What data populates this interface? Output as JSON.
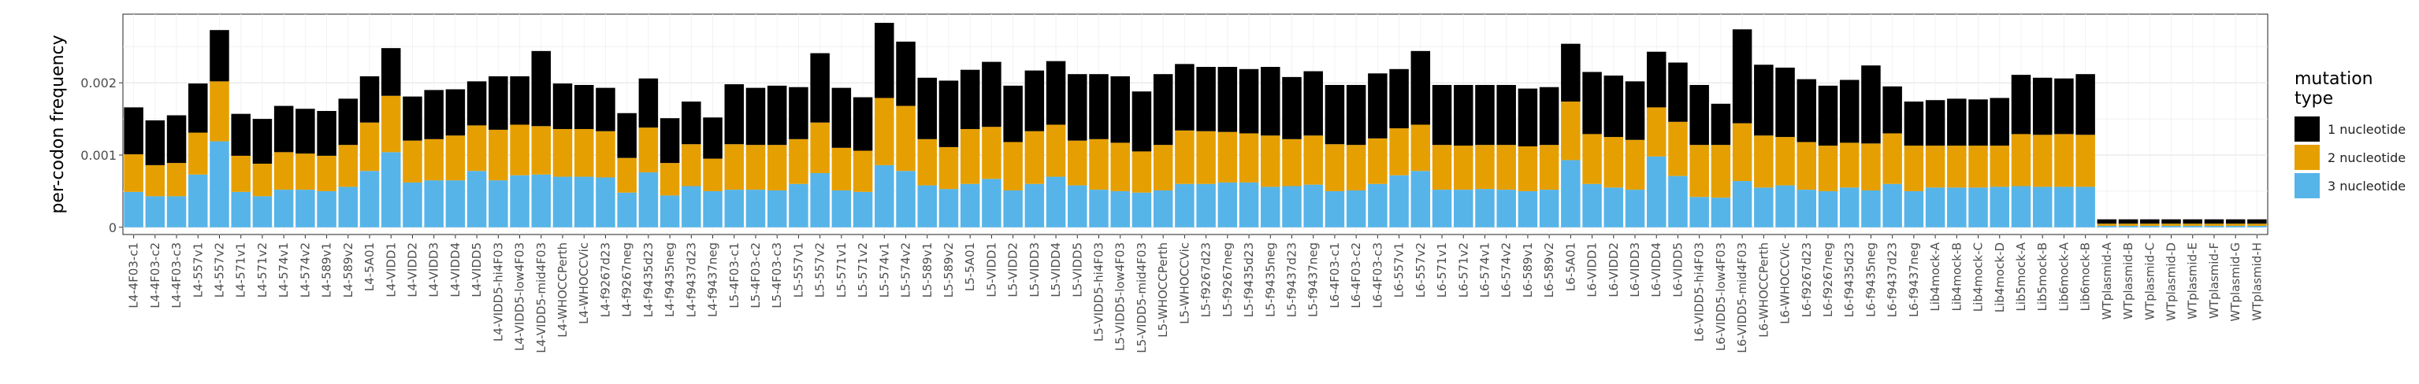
{
  "chart_data": {
    "type": "bar",
    "stacked": true,
    "ylabel": "per-codon frequency",
    "xlabel": "",
    "title": "",
    "ylim": [
      -0.0001,
      0.00295
    ],
    "yticks": [
      0,
      0.001,
      0.002
    ],
    "ytick_labels": [
      "0",
      "0.001",
      "0.002"
    ],
    "grid": true,
    "legend": {
      "title": "mutation type",
      "placement": "right"
    },
    "categories": [
      "L4-4F03-c1",
      "L4-4F03-c2",
      "L4-4F03-c3",
      "L4-557v1",
      "L4-557v2",
      "L4-571v1",
      "L4-571v2",
      "L4-574v1",
      "L4-574v2",
      "L4-589v1",
      "L4-589v2",
      "L4-5A01",
      "L4-VIDD1",
      "L4-VIDD2",
      "L4-VIDD3",
      "L4-VIDD4",
      "L4-VIDD5",
      "L4-VIDD5-hi4F03",
      "L4-VIDD5-low4F03",
      "L4-VIDD5-mid4F03",
      "L4-WHOCCPerth",
      "L4-WHOCCVic",
      "L4-f9267d23",
      "L4-f9267neg",
      "L4-f9435d23",
      "L4-f9435neg",
      "L4-f9437d23",
      "L4-f9437neg",
      "L5-4F03-c1",
      "L5-4F03-c2",
      "L5-4F03-c3",
      "L5-557v1",
      "L5-557v2",
      "L5-571v1",
      "L5-571v2",
      "L5-574v1",
      "L5-574v2",
      "L5-589v1",
      "L5-589v2",
      "L5-5A01",
      "L5-VIDD1",
      "L5-VIDD2",
      "L5-VIDD3",
      "L5-VIDD4",
      "L5-VIDD5",
      "L5-VIDD5-hi4F03",
      "L5-VIDD5-low4F03",
      "L5-VIDD5-mid4F03",
      "L5-WHOCCPerth",
      "L5-WHOCCVic",
      "L5-f9267d23",
      "L5-f9267neg",
      "L5-f9435d23",
      "L5-f9435neg",
      "L5-f9437d23",
      "L5-f9437neg",
      "L6-4F03-c1",
      "L6-4F03-c2",
      "L6-4F03-c3",
      "L6-557v1",
      "L6-557v2",
      "L6-571v1",
      "L6-571v2",
      "L6-574v1",
      "L6-574v2",
      "L6-589v1",
      "L6-589v2",
      "L6-5A01",
      "L6-VIDD1",
      "L6-VIDD2",
      "L6-VIDD3",
      "L6-VIDD4",
      "L6-VIDD5",
      "L6-VIDD5-hi4F03",
      "L6-VIDD5-low4F03",
      "L6-VIDD5-mid4F03",
      "L6-WHOCCPerth",
      "L6-WHOCCVic",
      "L6-f9267d23",
      "L6-f9267neg",
      "L6-f9435d23",
      "L6-f9435neg",
      "L6-f9437d23",
      "L6-f9437neg",
      "Lib4mock-A",
      "Lib4mock-B",
      "Lib4mock-C",
      "Lib4mock-D",
      "Lib5mock-A",
      "Lib5mock-B",
      "Lib6mock-A",
      "Lib6mock-B",
      "WTplasmid-A",
      "WTplasmid-B",
      "WTplasmid-C",
      "WTplasmid-D",
      "WTplasmid-E",
      "WTplasmid-F",
      "WTplasmid-G",
      "WTplasmid-H"
    ],
    "series": [
      {
        "name": "3 nucleotide",
        "color": "#56B4E9",
        "values": [
          0.00049,
          0.00043,
          0.00043,
          0.00073,
          0.00119,
          0.00049,
          0.00043,
          0.00052,
          0.00052,
          0.0005,
          0.00056,
          0.00078,
          0.00104,
          0.00062,
          0.00065,
          0.00065,
          0.00078,
          0.00065,
          0.00072,
          0.00073,
          0.0007,
          0.0007,
          0.00069,
          0.00048,
          0.00076,
          0.00044,
          0.00057,
          0.0005,
          0.00052,
          0.00052,
          0.00051,
          0.0006,
          0.00075,
          0.00051,
          0.00049,
          0.00086,
          0.00078,
          0.00058,
          0.00053,
          0.0006,
          0.00067,
          0.00051,
          0.0006,
          0.0007,
          0.00058,
          0.00052,
          0.0005,
          0.00048,
          0.00051,
          0.0006,
          0.0006,
          0.00062,
          0.00062,
          0.00056,
          0.00057,
          0.00059,
          0.0005,
          0.00051,
          0.0006,
          0.00072,
          0.00078,
          0.00052,
          0.00052,
          0.00053,
          0.00052,
          0.0005,
          0.00052,
          0.00093,
          0.0006,
          0.00055,
          0.00052,
          0.00098,
          0.00071,
          0.00042,
          0.00041,
          0.00064,
          0.00055,
          0.00058,
          0.00052,
          0.0005,
          0.00055,
          0.00051,
          0.0006,
          0.0005,
          0.00055,
          0.00055,
          0.00055,
          0.00056,
          0.00057,
          0.00056,
          0.00056,
          0.00056,
          2e-05,
          2e-05,
          2e-05,
          2e-05,
          2e-05,
          2e-05,
          2e-05,
          2e-05
        ]
      },
      {
        "name": "2 nucleotide",
        "color": "#E69F00",
        "values": [
          0.00052,
          0.00043,
          0.00046,
          0.00058,
          0.00083,
          0.0005,
          0.00045,
          0.00052,
          0.0005,
          0.00049,
          0.00058,
          0.00067,
          0.00078,
          0.00058,
          0.00057,
          0.00062,
          0.00063,
          0.0007,
          0.0007,
          0.00067,
          0.00066,
          0.00066,
          0.00064,
          0.00048,
          0.00062,
          0.00045,
          0.00058,
          0.00045,
          0.00063,
          0.00062,
          0.00063,
          0.00062,
          0.0007,
          0.00059,
          0.00057,
          0.00093,
          0.0009,
          0.00064,
          0.00058,
          0.00076,
          0.00072,
          0.00067,
          0.00073,
          0.00072,
          0.00062,
          0.0007,
          0.00067,
          0.00057,
          0.00063,
          0.00074,
          0.00073,
          0.0007,
          0.00068,
          0.00071,
          0.00065,
          0.00068,
          0.00065,
          0.00063,
          0.00063,
          0.00065,
          0.00064,
          0.00062,
          0.00061,
          0.00061,
          0.00062,
          0.00062,
          0.00062,
          0.00081,
          0.00069,
          0.0007,
          0.00069,
          0.00068,
          0.00075,
          0.00072,
          0.00073,
          0.0008,
          0.00072,
          0.00067,
          0.00066,
          0.00063,
          0.00062,
          0.00065,
          0.0007,
          0.00063,
          0.00058,
          0.00058,
          0.00058,
          0.00057,
          0.00072,
          0.00072,
          0.00073,
          0.00072,
          3e-05,
          3e-05,
          3e-05,
          3e-05,
          3e-05,
          3e-05,
          3e-05,
          3e-05
        ]
      },
      {
        "name": "1 nucleotide",
        "color": "#000000",
        "values": [
          0.00065,
          0.00062,
          0.00066,
          0.00068,
          0.00071,
          0.00058,
          0.00062,
          0.00064,
          0.00062,
          0.00062,
          0.00064,
          0.00064,
          0.00066,
          0.00061,
          0.00068,
          0.00064,
          0.00061,
          0.00074,
          0.00067,
          0.00104,
          0.00063,
          0.00061,
          0.0006,
          0.00062,
          0.00068,
          0.00062,
          0.00059,
          0.00057,
          0.00083,
          0.00079,
          0.00082,
          0.00072,
          0.00096,
          0.00083,
          0.00074,
          0.00104,
          0.00089,
          0.00085,
          0.00092,
          0.00082,
          0.0009,
          0.00078,
          0.00084,
          0.00088,
          0.00092,
          0.0009,
          0.00092,
          0.00083,
          0.00098,
          0.00092,
          0.00089,
          0.0009,
          0.00089,
          0.00095,
          0.00086,
          0.00089,
          0.00082,
          0.00083,
          0.0009,
          0.00082,
          0.00102,
          0.00083,
          0.00084,
          0.00083,
          0.00083,
          0.0008,
          0.0008,
          0.0008,
          0.00086,
          0.00085,
          0.00081,
          0.00077,
          0.00082,
          0.00083,
          0.00057,
          0.0013,
          0.00098,
          0.00096,
          0.00087,
          0.00083,
          0.00087,
          0.00108,
          0.00065,
          0.00061,
          0.00063,
          0.00065,
          0.00064,
          0.00066,
          0.00082,
          0.00079,
          0.00077,
          0.00084,
          6e-05,
          6e-05,
          6e-05,
          6e-05,
          6e-05,
          6e-05,
          6e-05,
          6e-05
        ]
      }
    ]
  }
}
